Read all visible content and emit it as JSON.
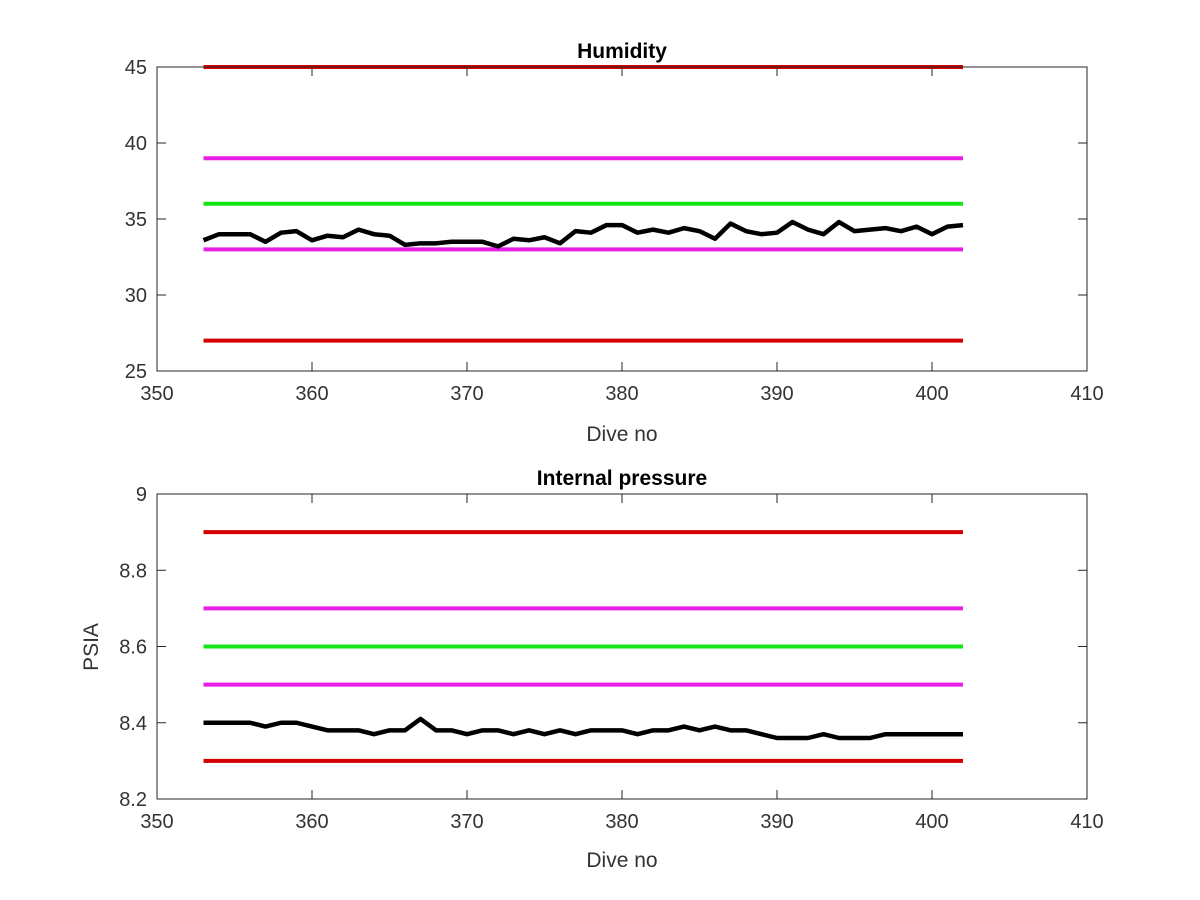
{
  "chart_data": [
    {
      "type": "line",
      "title": "Humidity",
      "xlabel": "Dive no",
      "ylabel": "",
      "xlim": [
        350,
        410
      ],
      "ylim": [
        25,
        45
      ],
      "xticks": [
        350,
        360,
        370,
        380,
        390,
        400,
        410
      ],
      "yticks": [
        25,
        30,
        35,
        40,
        45
      ],
      "grid": false,
      "series": [
        {
          "color": "#d40000",
          "x": [
            353,
            402
          ],
          "y": [
            45,
            45
          ]
        },
        {
          "color": "#e61ee6",
          "x": [
            353,
            402
          ],
          "y": [
            39,
            39
          ]
        },
        {
          "color": "#14e614",
          "x": [
            353,
            402
          ],
          "y": [
            36,
            36
          ]
        },
        {
          "color": "#e61ee6",
          "x": [
            353,
            402
          ],
          "y": [
            33,
            33
          ]
        },
        {
          "color": "#d40000",
          "x": [
            353,
            402
          ],
          "y": [
            27,
            27
          ]
        },
        {
          "color": "#000000",
          "x": [
            353,
            354,
            355,
            356,
            357,
            358,
            359,
            360,
            361,
            362,
            363,
            364,
            365,
            366,
            367,
            368,
            369,
            370,
            371,
            372,
            373,
            374,
            375,
            376,
            377,
            378,
            379,
            380,
            381,
            382,
            383,
            384,
            385,
            386,
            387,
            388,
            389,
            390,
            391,
            392,
            393,
            394,
            395,
            396,
            397,
            398,
            399,
            400,
            401,
            402
          ],
          "y": [
            33.6,
            34.0,
            34.0,
            34.0,
            33.5,
            34.1,
            34.2,
            33.6,
            33.9,
            33.8,
            34.3,
            34.0,
            33.9,
            33.3,
            33.4,
            33.4,
            33.5,
            33.5,
            33.5,
            33.2,
            33.7,
            33.6,
            33.8,
            33.4,
            34.2,
            34.1,
            34.6,
            34.6,
            34.1,
            34.3,
            34.1,
            34.4,
            34.2,
            33.7,
            34.7,
            34.2,
            34.0,
            34.1,
            34.8,
            34.3,
            34.0,
            34.8,
            34.2,
            34.3,
            34.4,
            34.2,
            34.5,
            34.0,
            34.5,
            34.6
          ]
        }
      ]
    },
    {
      "type": "line",
      "title": "Internal pressure",
      "xlabel": "Dive no",
      "ylabel": "PSIA",
      "xlim": [
        350,
        410
      ],
      "ylim": [
        8.2,
        9.0
      ],
      "xticks": [
        350,
        360,
        370,
        380,
        390,
        400,
        410
      ],
      "yticks": [
        8.2,
        8.4,
        8.6,
        8.8,
        9.0
      ],
      "ytick_labels": [
        "8.2",
        "8.4",
        "8.6",
        "8.8",
        "9"
      ],
      "grid": false,
      "series": [
        {
          "color": "#d40000",
          "x": [
            353,
            402
          ],
          "y": [
            8.9,
            8.9
          ]
        },
        {
          "color": "#e61ee6",
          "x": [
            353,
            402
          ],
          "y": [
            8.7,
            8.7
          ]
        },
        {
          "color": "#14e614",
          "x": [
            353,
            402
          ],
          "y": [
            8.6,
            8.6
          ]
        },
        {
          "color": "#e61ee6",
          "x": [
            353,
            402
          ],
          "y": [
            8.5,
            8.5
          ]
        },
        {
          "color": "#d40000",
          "x": [
            353,
            402
          ],
          "y": [
            8.3,
            8.3
          ]
        },
        {
          "color": "#000000",
          "x": [
            353,
            354,
            355,
            356,
            357,
            358,
            359,
            360,
            361,
            362,
            363,
            364,
            365,
            366,
            367,
            368,
            369,
            370,
            371,
            372,
            373,
            374,
            375,
            376,
            377,
            378,
            379,
            380,
            381,
            382,
            383,
            384,
            385,
            386,
            387,
            388,
            389,
            390,
            391,
            392,
            393,
            394,
            395,
            396,
            397,
            398,
            399,
            400,
            401,
            402
          ],
          "y": [
            8.4,
            8.4,
            8.4,
            8.4,
            8.39,
            8.4,
            8.4,
            8.39,
            8.38,
            8.38,
            8.38,
            8.37,
            8.38,
            8.38,
            8.41,
            8.38,
            8.38,
            8.37,
            8.38,
            8.38,
            8.37,
            8.38,
            8.37,
            8.38,
            8.37,
            8.38,
            8.38,
            8.38,
            8.37,
            8.38,
            8.38,
            8.39,
            8.38,
            8.39,
            8.38,
            8.38,
            8.37,
            8.36,
            8.36,
            8.36,
            8.37,
            8.36,
            8.36,
            8.36,
            8.37,
            8.37,
            8.37,
            8.37,
            8.37,
            8.37
          ]
        }
      ]
    }
  ]
}
